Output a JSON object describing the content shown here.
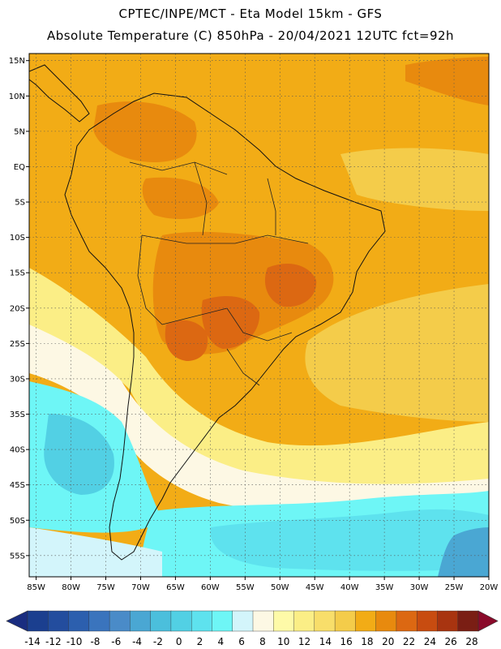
{
  "header": {
    "line1": "CPTEC/INPE/MCT -  Eta Model 15km - GFS",
    "line2": "Absolute Temperature (C) 850hPa - 20/04/2021 12UTC fct=92h"
  },
  "map": {
    "lat_labels": [
      "15N",
      "10N",
      "5N",
      "EQ",
      "5S",
      "10S",
      "15S",
      "20S",
      "25S",
      "30S",
      "35S",
      "40S",
      "45S",
      "50S",
      "55S"
    ],
    "lat_values": [
      15,
      10,
      5,
      0,
      -5,
      -10,
      -15,
      -20,
      -25,
      -30,
      -35,
      -40,
      -45,
      -50,
      -55
    ],
    "lon_labels": [
      "85W",
      "80W",
      "75W",
      "70W",
      "65W",
      "60W",
      "55W",
      "50W",
      "45W",
      "40W",
      "35W",
      "30W",
      "25W",
      "20W"
    ],
    "lon_values": [
      -85,
      -80,
      -75,
      -70,
      -65,
      -60,
      -55,
      -50,
      -45,
      -40,
      -35,
      -30,
      -25,
      -20
    ],
    "extent": {
      "lon_min": -86,
      "lon_max": -20,
      "lat_min": -58,
      "lat_max": 16
    }
  },
  "colorbar": {
    "labels": [
      "-14",
      "-12",
      "-10",
      "-8",
      "-6",
      "-4",
      "-2",
      "0",
      "2",
      "4",
      "6",
      "8",
      "10",
      "12",
      "14",
      "16",
      "18",
      "20",
      "22",
      "24",
      "26",
      "28"
    ],
    "colors": [
      "#1b3f8f",
      "#234d9e",
      "#2c5fae",
      "#3a74bd",
      "#4a8bc8",
      "#4aa7d3",
      "#4bbfdc",
      "#52d0e4",
      "#5ee2ee",
      "#6ef6f6",
      "#d3f5fb",
      "#fdf8e4",
      "#fefaa8",
      "#fbee86",
      "#f8de6a",
      "#f4cc4a",
      "#f2ac16",
      "#e88a0e",
      "#dc6812",
      "#c84c10",
      "#a83410",
      "#7a1e14"
    ],
    "low_color": "#1a2d80",
    "high_color": "#8a0a2a"
  },
  "field_colors": {
    "ocean_warm": "#f2ac16",
    "warm_light": "#f4cc4a",
    "hot": "#e88a0e",
    "hottest": "#dc6812",
    "pale_yellow": "#fbee86",
    "cream": "#fdf8e4",
    "cold_cyan": "#5ee2ee",
    "colder_cyan": "#52d0e4",
    "light_cyan": "#6ef6f6",
    "pale_cyan": "#d3f5fb",
    "deep_blue": "#4aa7d3"
  }
}
